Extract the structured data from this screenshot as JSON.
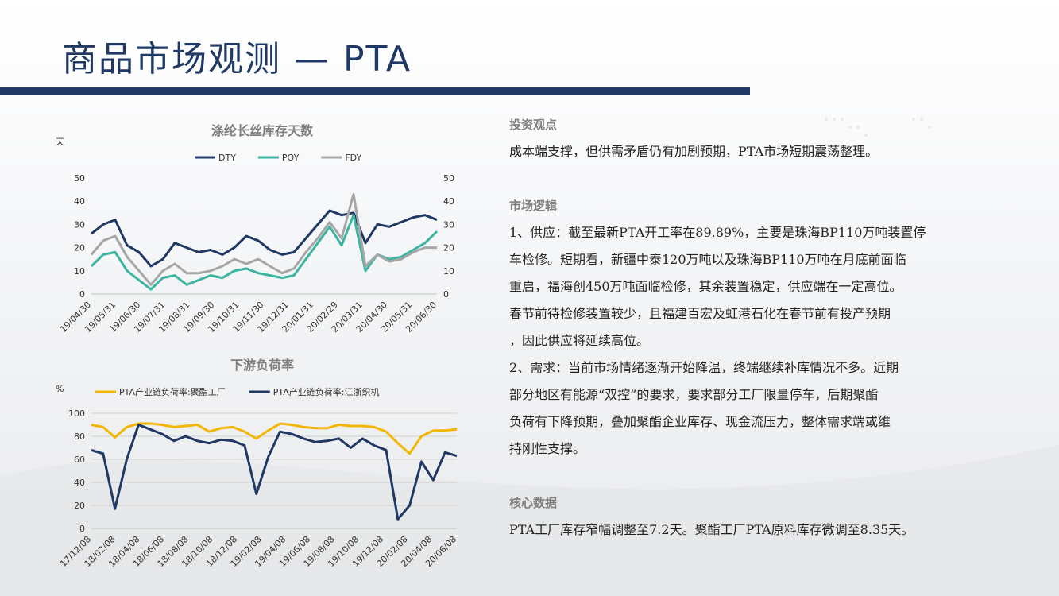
{
  "page": {
    "title": "商品市场观测 — PTA",
    "accent_color": "#1f3864"
  },
  "sections": {
    "view_heading": "投资观点",
    "view_lines": [
      "成本端支撑，但供需矛盾仍有加剧预期，PTA市场短期震荡整理。"
    ],
    "logic_heading": "市场逻辑",
    "logic_lines": [
      "1、供应：截至最新PTA开工率在89.89%，主要是珠海BP110万吨装置停",
      "车检修。短期看，新疆中泰120万吨以及珠海BP110万吨在月底前面临",
      "重启，福海创450万吨面临检修，其余装置稳定，供应端在一定高位。",
      "春节前待检修装置较少，且福建百宏及虹港石化在春节前有投产预期",
      "，因此供应将延续高位。",
      "2、需求：当前市场情绪逐渐开始降温，终端继续补库情况不多。近期",
      "部分地区有能源“双控”的要求，要求部分工厂限量停车，后期聚酯",
      "负荷有下降预期，叠加聚酯企业库存、现金流压力，整体需求端或维",
      "持刚性支撑。"
    ],
    "core_heading": "核心数据",
    "core_lines": [
      "PTA工厂库存窄幅调整至7.2天。聚酯工厂PTA原料库存微调至8.35天。"
    ]
  },
  "chart_data": [
    {
      "type": "line",
      "title": "涤纶长丝库存天数",
      "ylabel": "天",
      "ylim": [
        0,
        50
      ],
      "yticks": [
        0,
        10,
        20,
        30,
        40,
        50
      ],
      "y2ticks": [
        0,
        10,
        20,
        30,
        40,
        50
      ],
      "grid": false,
      "legend": "top",
      "xlabels": [
        "19/04/30",
        "19/05/31",
        "19/06/30",
        "19/07/31",
        "19/08/31",
        "19/09/30",
        "19/10/31",
        "19/11/30",
        "19/12/31",
        "20/01/31",
        "20/02/29",
        "20/03/31",
        "20/04/30",
        "20/05/31",
        "20/06/30"
      ],
      "x": [
        "19/04/30",
        "19/05/15",
        "19/05/31",
        "19/06/15",
        "19/06/30",
        "19/07/15",
        "19/07/31",
        "19/08/15",
        "19/08/31",
        "19/09/15",
        "19/09/30",
        "19/10/15",
        "19/10/31",
        "19/11/15",
        "19/11/30",
        "19/12/15",
        "19/12/31",
        "20/01/15",
        "20/01/31",
        "20/02/15",
        "20/02/29",
        "20/03/15",
        "20/03/31",
        "20/04/15",
        "20/04/30",
        "20/05/15",
        "20/05/31",
        "20/06/15",
        "20/06/30",
        "20/07/15"
      ],
      "series": [
        {
          "name": "DTY",
          "color": "#1f3864",
          "values": [
            26,
            30,
            32,
            21,
            18,
            12,
            15,
            22,
            20,
            18,
            19,
            17,
            20,
            25,
            23,
            19,
            17,
            18,
            24,
            30,
            36,
            34,
            35,
            22,
            30,
            29,
            31,
            33,
            34,
            32
          ]
        },
        {
          "name": "POY",
          "color": "#3cb4a0",
          "values": [
            12,
            17,
            18,
            10,
            6,
            2,
            7,
            8,
            4,
            6,
            8,
            7,
            10,
            11,
            9,
            8,
            7,
            8,
            15,
            22,
            29,
            21,
            34,
            10,
            17,
            15,
            16,
            19,
            22,
            27
          ]
        },
        {
          "name": "FDY",
          "color": "#a6a6a6",
          "values": [
            17,
            23,
            25,
            16,
            10,
            4,
            10,
            13,
            9,
            9,
            10,
            12,
            15,
            13,
            15,
            12,
            9,
            11,
            18,
            24,
            31,
            24,
            43,
            12,
            17,
            14,
            15,
            18,
            20,
            20
          ]
        }
      ]
    },
    {
      "type": "line",
      "title": "下游负荷率",
      "ylabel": "%",
      "ylim": [
        0,
        100
      ],
      "yticks": [
        0,
        20,
        40,
        60,
        80,
        100
      ],
      "grid": true,
      "legend": "top",
      "xlabels": [
        "17/12/08",
        "18/02/08",
        "18/04/08",
        "18/06/08",
        "18/08/08",
        "18/10/08",
        "18/12/08",
        "19/02/08",
        "19/04/08",
        "19/06/08",
        "19/08/08",
        "19/10/08",
        "19/12/08",
        "20/02/08",
        "20/04/08",
        "20/06/08"
      ],
      "x": [
        "17/12/08",
        "18/01/08",
        "18/02/08",
        "18/03/08",
        "18/04/08",
        "18/05/08",
        "18/06/08",
        "18/07/08",
        "18/08/08",
        "18/09/08",
        "18/10/08",
        "18/11/08",
        "18/12/08",
        "19/01/08",
        "19/02/08",
        "19/03/08",
        "19/04/08",
        "19/05/08",
        "19/06/08",
        "19/07/08",
        "19/08/08",
        "19/09/08",
        "19/10/08",
        "19/11/08",
        "19/12/08",
        "20/01/08",
        "20/02/08",
        "20/03/08",
        "20/04/08",
        "20/05/08",
        "20/06/08",
        "20/07/08"
      ],
      "series": [
        {
          "name": "PTA产业链负荷率:聚酯工厂",
          "color": "#f2b705",
          "values": [
            90,
            88,
            79,
            88,
            91,
            91,
            90,
            88,
            89,
            90,
            84,
            87,
            88,
            84,
            78,
            85,
            91,
            90,
            88,
            87,
            87,
            90,
            89,
            89,
            88,
            84,
            74,
            65,
            80,
            85,
            85,
            86
          ]
        },
        {
          "name": "PTA产业链负荷率:江浙织机",
          "color": "#1f3864",
          "values": [
            68,
            65,
            17,
            60,
            90,
            86,
            82,
            76,
            80,
            76,
            74,
            77,
            76,
            72,
            30,
            62,
            84,
            82,
            78,
            75,
            76,
            78,
            70,
            78,
            72,
            68,
            8,
            20,
            58,
            42,
            66,
            63
          ]
        }
      ]
    }
  ]
}
